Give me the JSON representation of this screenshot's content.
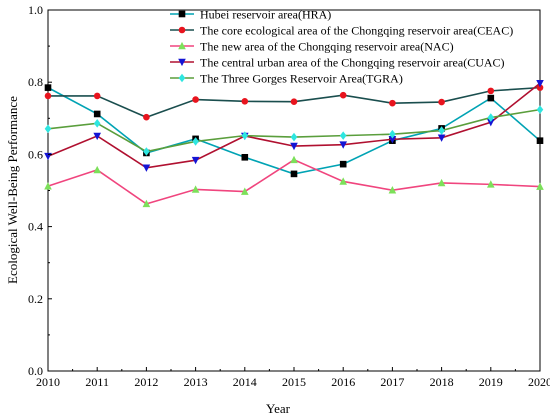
{
  "chart_data": {
    "type": "line",
    "title": "",
    "xlabel": "Year",
    "ylabel": "Ecological Well-Being Performance",
    "x": [
      2010,
      2011,
      2012,
      2013,
      2014,
      2015,
      2016,
      2017,
      2018,
      2019,
      2020
    ],
    "xlim": [
      2010,
      2020
    ],
    "ylim": [
      0.0,
      1.0
    ],
    "xticks": [
      "2010",
      "2011",
      "2012",
      "2013",
      "2014",
      "2015",
      "2016",
      "2017",
      "2018",
      "2019",
      "2020"
    ],
    "yticks": [
      "0.0",
      "0.2",
      "0.4",
      "0.6",
      "0.8",
      "1.0"
    ],
    "grid": false,
    "legend_position": "top-center, inside plot",
    "series": [
      {
        "name": "Hubei reservoir area(HRA)",
        "color": "#00a3b4",
        "marker_color": "#000000",
        "marker": "square",
        "values": [
          0.785,
          0.712,
          0.604,
          0.643,
          0.592,
          0.546,
          0.573,
          0.638,
          0.672,
          0.756,
          0.638
        ]
      },
      {
        "name": "The core ecological area of the Chongqing reservoir area(CEAC)",
        "color": "#1a4e4e",
        "marker_color": "#e8141e",
        "marker": "circle",
        "values": [
          0.762,
          0.762,
          0.703,
          0.752,
          0.747,
          0.746,
          0.764,
          0.742,
          0.745,
          0.776,
          0.785
        ]
      },
      {
        "name": "The new area of the Chongqing reservoir area(NAC)",
        "color": "#f0457e",
        "marker_color": "#7ce05a",
        "marker": "triangle-up",
        "values": [
          0.512,
          0.557,
          0.463,
          0.503,
          0.497,
          0.585,
          0.525,
          0.501,
          0.521,
          0.517,
          0.511
        ]
      },
      {
        "name": "The central urban area of the Chongqing reservoir area(CUAC)",
        "color": "#b01030",
        "marker_color": "#1414d4",
        "marker": "triangle-down",
        "values": [
          0.595,
          0.651,
          0.563,
          0.584,
          0.651,
          0.623,
          0.627,
          0.642,
          0.646,
          0.689,
          0.797
        ]
      },
      {
        "name": "The Three Gorges Reservoir Area(TGRA)",
        "color": "#5a9e3c",
        "marker_color": "#2ee6e0",
        "marker": "diamond",
        "values": [
          0.671,
          0.686,
          0.608,
          0.636,
          0.652,
          0.648,
          0.652,
          0.656,
          0.666,
          0.702,
          0.724
        ]
      }
    ]
  }
}
